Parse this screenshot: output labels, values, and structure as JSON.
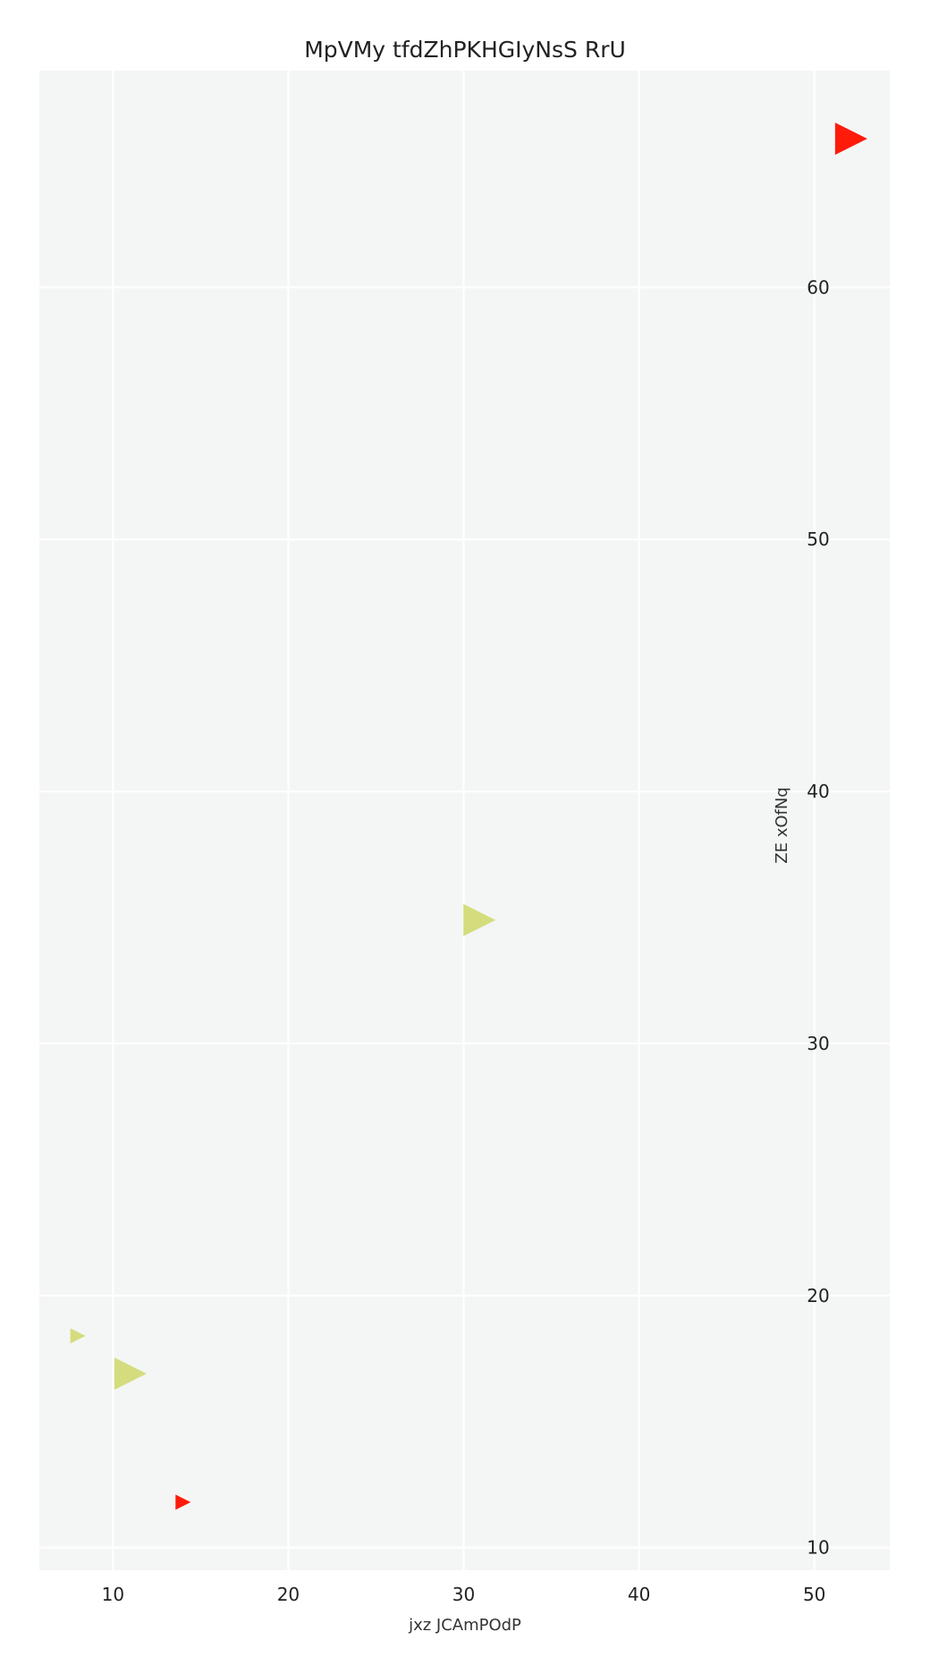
{
  "chart_data": {
    "type": "scatter",
    "title": "MpVMy tfdZhPKHGIyNsS RrU",
    "xlabel": "jxz JCAmPOdP",
    "ylabel": "ZE xOfNq",
    "xlim": [
      5.8,
      54.3
    ],
    "ylim": [
      9.1,
      68.6
    ],
    "x_ticks": [
      10,
      20,
      30,
      40,
      50
    ],
    "y_ticks": [
      10,
      20,
      30,
      40,
      50,
      60
    ],
    "grid": true,
    "marker": "triangle-right",
    "points": [
      {
        "x": 52.1,
        "y": 65.9,
        "size": 36,
        "color": "#ff1a0a"
      },
      {
        "x": 30.9,
        "y": 34.9,
        "size": 36,
        "color": "#d4dc7e"
      },
      {
        "x": 8.0,
        "y": 18.4,
        "size": 17,
        "color": "#d4dc7e"
      },
      {
        "x": 11.0,
        "y": 16.9,
        "size": 36,
        "color": "#d4dc7e"
      },
      {
        "x": 14.0,
        "y": 11.8,
        "size": 17,
        "color": "#ff1a0a"
      }
    ]
  }
}
